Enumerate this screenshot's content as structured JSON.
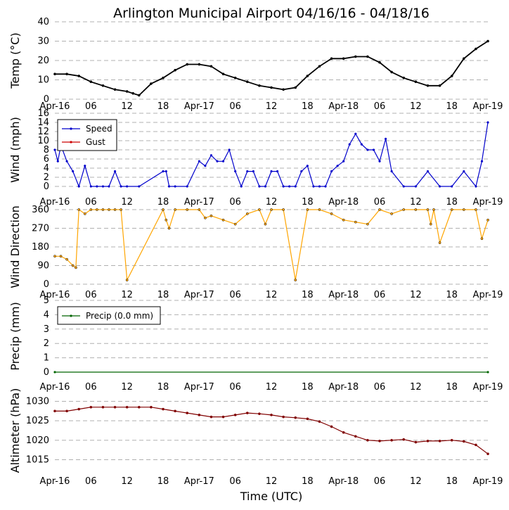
{
  "title": "Arlington Municipal Airport 04/16/16 - 04/18/16",
  "xlabel": "Time (UTC)",
  "x_ticks": [
    "Apr-16",
    "06",
    "12",
    "18",
    "Apr-17",
    "06",
    "12",
    "18",
    "Apr-18",
    "06",
    "12",
    "18",
    "Apr-19"
  ],
  "colors": {
    "temp": "#000000",
    "speed": "#0000cc",
    "gust": "#cc0000",
    "dir": "#ffa500",
    "precip": "#006400",
    "alt": "#800000",
    "grid": "#b0b0b0"
  },
  "chart_data": [
    {
      "type": "line",
      "ylabel": "Temp (°C)",
      "ylim": [
        0,
        40
      ],
      "yticks": [
        0,
        10,
        20,
        30,
        40
      ],
      "grid": true,
      "x_hours": [
        0,
        2,
        4,
        6,
        8,
        10,
        12,
        13,
        14,
        16,
        18,
        20,
        22,
        24,
        26,
        28,
        30,
        32,
        34,
        36,
        38,
        40,
        42,
        44,
        46,
        48,
        50,
        52,
        54,
        56,
        58,
        60,
        62,
        64,
        66,
        68,
        70,
        72
      ],
      "series": [
        {
          "name": "Temp",
          "values": [
            13,
            13,
            12,
            9,
            7,
            5,
            4,
            3,
            2,
            8,
            11,
            15,
            18,
            18,
            17,
            13,
            11,
            9,
            7,
            6,
            5,
            6,
            12,
            17,
            21,
            21,
            22,
            22,
            19,
            14,
            11,
            9,
            7,
            7,
            12,
            21,
            26,
            30
          ]
        }
      ]
    },
    {
      "type": "line",
      "ylabel": "Wind (mph)",
      "ylim": [
        0,
        16
      ],
      "yticks": [
        0,
        2,
        4,
        6,
        8,
        10,
        12,
        14,
        16
      ],
      "grid": true,
      "legend": "top-left",
      "x_hours": [
        0,
        0.5,
        1,
        2,
        3,
        4,
        5,
        6,
        7,
        8,
        9,
        10,
        11,
        12,
        14,
        18,
        18.5,
        19,
        20,
        22,
        24,
        25,
        26,
        27,
        28,
        29,
        30,
        31,
        32,
        33,
        34,
        35,
        36,
        37,
        38,
        39,
        40,
        41,
        42,
        43,
        44,
        45,
        46,
        47,
        48,
        49,
        50,
        51,
        52,
        53,
        54,
        55,
        56,
        58,
        60,
        62,
        64,
        66,
        68,
        70,
        71,
        72
      ],
      "series": [
        {
          "name": "Speed",
          "values": [
            8,
            5.5,
            9,
            5.5,
            3.3,
            0,
            4.5,
            0,
            0,
            0,
            0,
            3.3,
            0,
            0,
            0,
            3.3,
            3.3,
            0,
            0,
            0,
            5.5,
            4.5,
            6.8,
            5.5,
            5.5,
            8,
            3.3,
            0,
            3.3,
            3.3,
            0,
            0,
            3.3,
            3.3,
            0,
            0,
            0,
            3.3,
            4.5,
            0,
            0,
            0,
            3.3,
            4.5,
            5.5,
            9.2,
            11.5,
            9.2,
            8,
            8,
            5.5,
            10.4,
            3.3,
            0,
            0,
            3.3,
            0,
            0,
            3.3,
            0,
            5.5,
            14
          ]
        },
        {
          "name": "Gust",
          "values": []
        }
      ]
    },
    {
      "type": "scatter",
      "ylabel": "Wind Direction",
      "ylim": [
        0,
        360
      ],
      "yticks": [
        0,
        90,
        180,
        270,
        360
      ],
      "grid": true,
      "x_hours": [
        0,
        1,
        2,
        3,
        3.5,
        4,
        5,
        6,
        7,
        8,
        9,
        10,
        11,
        12,
        18,
        18.5,
        19,
        20,
        22,
        24,
        25,
        26,
        28,
        30,
        32,
        34,
        35,
        36,
        38,
        40,
        42,
        44,
        46,
        48,
        50,
        52,
        54,
        56,
        58,
        60,
        62,
        62.5,
        63,
        64,
        66,
        68,
        70,
        71,
        72
      ],
      "series": [
        {
          "name": "Direction",
          "values": [
            135,
            135,
            120,
            90,
            80,
            360,
            340,
            360,
            360,
            360,
            360,
            360,
            360,
            20,
            360,
            310,
            270,
            360,
            360,
            360,
            320,
            330,
            310,
            290,
            340,
            360,
            290,
            360,
            360,
            20,
            360,
            360,
            340,
            310,
            300,
            290,
            360,
            340,
            360,
            360,
            360,
            290,
            360,
            200,
            360,
            360,
            360,
            220,
            310
          ]
        }
      ]
    },
    {
      "type": "line",
      "ylabel": "Precip (mm)",
      "ylim": [
        0,
        5
      ],
      "yticks": [
        0,
        1,
        2,
        3,
        4,
        5
      ],
      "grid": true,
      "legend": "top-left",
      "x_hours": [
        0,
        72
      ],
      "series": [
        {
          "name": "Precip (0.0 mm)",
          "values": [
            0,
            0
          ]
        }
      ]
    },
    {
      "type": "line",
      "ylabel": "Altimeter (hPa)",
      "ylim": [
        1014,
        1031
      ],
      "yticks": [
        1015,
        1020,
        1025,
        1030
      ],
      "grid": true,
      "x_hours": [
        0,
        2,
        4,
        6,
        8,
        10,
        12,
        14,
        16,
        18,
        20,
        22,
        24,
        26,
        28,
        30,
        32,
        34,
        36,
        38,
        40,
        42,
        44,
        46,
        48,
        50,
        52,
        54,
        56,
        58,
        60,
        62,
        64,
        66,
        68,
        70,
        72
      ],
      "series": [
        {
          "name": "Altimeter",
          "values": [
            1027.5,
            1027.5,
            1028,
            1028.5,
            1028.5,
            1028.5,
            1028.5,
            1028.5,
            1028.5,
            1028,
            1027.5,
            1027,
            1026.5,
            1026,
            1026,
            1026.5,
            1027,
            1026.8,
            1026.5,
            1026,
            1025.8,
            1025.5,
            1024.8,
            1023.5,
            1022,
            1021,
            1020,
            1019.8,
            1020,
            1020.2,
            1019.5,
            1019.8,
            1019.8,
            1020,
            1019.7,
            1018.8,
            1016.5
          ]
        }
      ]
    }
  ]
}
